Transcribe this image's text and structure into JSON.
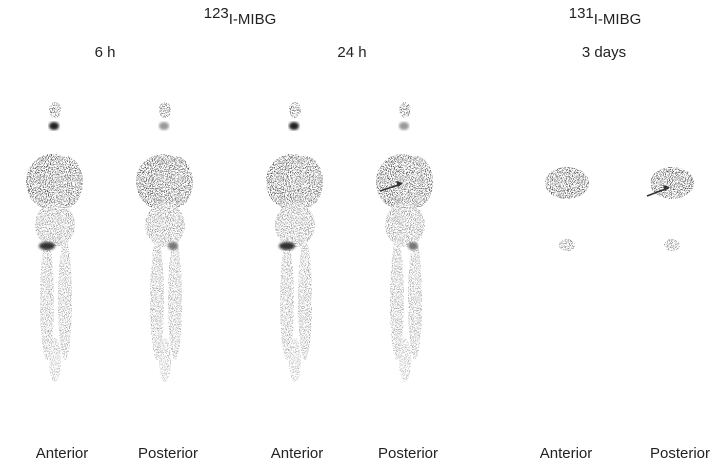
{
  "headers": [
    {
      "isotope": "123",
      "agent": "I-MIBG"
    },
    {
      "isotope": "131",
      "agent": "I-MIBG"
    }
  ],
  "time_points": [
    "6 h",
    "24 h",
    "3 days"
  ],
  "views": [
    "Anterior",
    "Posterior",
    "Anterior",
    "Posterior",
    "Anterior",
    "Posterior"
  ]
}
